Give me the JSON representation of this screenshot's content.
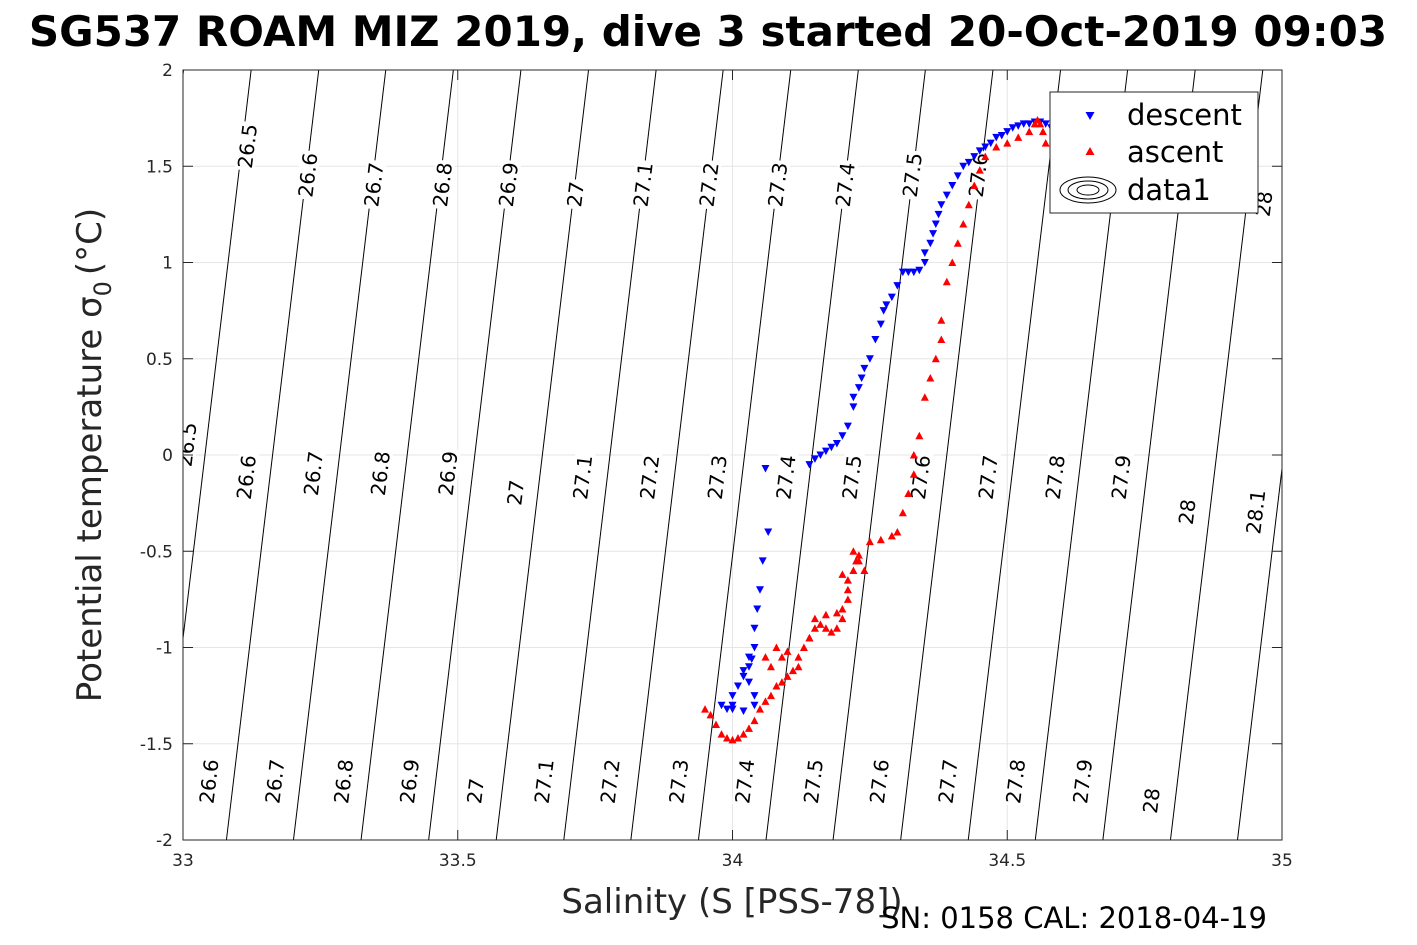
{
  "chart_data": {
    "type": "scatter",
    "title": "SG537 ROAM MIZ 2019, dive 3 started 20-Oct-2019 09:03",
    "xlabel": "Salinity (S [PSS-78])",
    "ylabel_main": "Potential temperature",
    "ylabel_sigma": "σ",
    "ylabel_sub": "0",
    "ylabel_unit": "(°C)",
    "xlim": [
      33,
      35
    ],
    "ylim": [
      -2,
      2
    ],
    "xticks": [
      33,
      33.5,
      34,
      34.5,
      35
    ],
    "xtick_labels": [
      "33",
      "33.5",
      "34",
      "34.5",
      "35"
    ],
    "yticks": [
      2,
      1.5,
      1,
      0.5,
      0,
      -0.5,
      -1,
      -1.5,
      -2
    ],
    "ytick_labels": [
      "2",
      "1.5",
      "1",
      "0.5",
      "0",
      "-0.5",
      "-1",
      "-1.5",
      "-2"
    ],
    "grid": true,
    "legend_position": "top-right",
    "legend": [
      "descent",
      "ascent",
      "data1"
    ],
    "colors": {
      "descent": "#0000ff",
      "ascent": "#ff0000",
      "contour": "#000000",
      "grid": "#e6e6e6"
    },
    "contours": {
      "intercepts_at_T_neg2": [
        32.833,
        32.956,
        33.079,
        33.201,
        33.324,
        33.447,
        33.57,
        33.693,
        33.815,
        33.938,
        34.061,
        34.183,
        34.306,
        34.429,
        34.551,
        34.674,
        34.797,
        34.919,
        35.042
      ],
      "slope_dS_per_degC": 0.042,
      "labels": [
        {
          "text": "26.5",
          "S": 33.13,
          "T": 1.6
        },
        {
          "text": "26.6",
          "S": 33.24,
          "T": 1.45
        },
        {
          "text": "26.7",
          "S": 33.36,
          "T": 1.4
        },
        {
          "text": "26.8",
          "S": 33.485,
          "T": 1.4
        },
        {
          "text": "26.9",
          "S": 33.605,
          "T": 1.4
        },
        {
          "text": "27",
          "S": 33.727,
          "T": 1.35
        },
        {
          "text": "27.1",
          "S": 33.85,
          "T": 1.4
        },
        {
          "text": "27.2",
          "S": 33.97,
          "T": 1.4
        },
        {
          "text": "27.3",
          "S": 34.095,
          "T": 1.4
        },
        {
          "text": "27.4",
          "S": 34.218,
          "T": 1.4
        },
        {
          "text": "27.5",
          "S": 34.34,
          "T": 1.45
        },
        {
          "text": "27.6",
          "S": 34.46,
          "T": 1.45
        },
        {
          "text": "28",
          "S": 34.98,
          "T": 1.3
        },
        {
          "text": "26.5",
          "S": 33.02,
          "T": 0.05
        },
        {
          "text": "26.6",
          "S": 33.128,
          "T": -0.12
        },
        {
          "text": "26.7",
          "S": 33.25,
          "T": -0.1
        },
        {
          "text": "26.8",
          "S": 33.372,
          "T": -0.1
        },
        {
          "text": "26.9",
          "S": 33.495,
          "T": -0.1
        },
        {
          "text": "27",
          "S": 33.618,
          "T": -0.2
        },
        {
          "text": "27.1",
          "S": 33.74,
          "T": -0.12
        },
        {
          "text": "27.2",
          "S": 33.862,
          "T": -0.12
        },
        {
          "text": "27.3",
          "S": 33.985,
          "T": -0.12
        },
        {
          "text": "27.4",
          "S": 34.11,
          "T": -0.12
        },
        {
          "text": "27.5",
          "S": 34.23,
          "T": -0.12
        },
        {
          "text": "27.6",
          "S": 34.355,
          "T": -0.12
        },
        {
          "text": "27.7",
          "S": 34.478,
          "T": -0.12
        },
        {
          "text": "27.8",
          "S": 34.6,
          "T": -0.12
        },
        {
          "text": "27.9",
          "S": 34.72,
          "T": -0.12
        },
        {
          "text": "28",
          "S": 34.84,
          "T": -0.3
        },
        {
          "text": "28.1",
          "S": 34.965,
          "T": -0.3
        },
        {
          "text": "26.6",
          "S": 33.06,
          "T": -1.7
        },
        {
          "text": "26.7",
          "S": 33.18,
          "T": -1.7
        },
        {
          "text": "26.8",
          "S": 33.305,
          "T": -1.7
        },
        {
          "text": "26.9",
          "S": 33.425,
          "T": -1.7
        },
        {
          "text": "27",
          "S": 33.545,
          "T": -1.75
        },
        {
          "text": "27.1",
          "S": 33.67,
          "T": -1.7
        },
        {
          "text": "27.2",
          "S": 33.79,
          "T": -1.7
        },
        {
          "text": "27.3",
          "S": 33.915,
          "T": -1.7
        },
        {
          "text": "27.4",
          "S": 34.035,
          "T": -1.7
        },
        {
          "text": "27.5",
          "S": 34.16,
          "T": -1.7
        },
        {
          "text": "27.6",
          "S": 34.28,
          "T": -1.7
        },
        {
          "text": "27.7",
          "S": 34.405,
          "T": -1.7
        },
        {
          "text": "27.8",
          "S": 34.528,
          "T": -1.7
        },
        {
          "text": "27.9",
          "S": 34.65,
          "T": -1.7
        },
        {
          "text": "28",
          "S": 34.775,
          "T": -1.8
        }
      ]
    },
    "series": [
      {
        "name": "descent",
        "marker": "triangle-down",
        "points": [
          [
            34.06,
            -0.07
          ],
          [
            34.065,
            -0.4
          ],
          [
            34.055,
            -0.55
          ],
          [
            34.05,
            -0.7
          ],
          [
            34.045,
            -0.8
          ],
          [
            34.04,
            -0.9
          ],
          [
            34.04,
            -1.0
          ],
          [
            34.035,
            -1.06
          ],
          [
            34.03,
            -1.1
          ],
          [
            34.03,
            -1.05
          ],
          [
            34.02,
            -1.15
          ],
          [
            34.01,
            -1.2
          ],
          [
            34.0,
            -1.25
          ],
          [
            34.0,
            -1.3
          ],
          [
            33.99,
            -1.32
          ],
          [
            33.98,
            -1.3
          ],
          [
            34.0,
            -1.32
          ],
          [
            34.02,
            -1.33
          ],
          [
            34.04,
            -1.3
          ],
          [
            34.04,
            -1.25
          ],
          [
            34.03,
            -1.18
          ],
          [
            34.02,
            -1.12
          ],
          [
            34.14,
            -0.05
          ],
          [
            34.15,
            -0.02
          ],
          [
            34.16,
            0.0
          ],
          [
            34.17,
            0.02
          ],
          [
            34.18,
            0.04
          ],
          [
            34.19,
            0.06
          ],
          [
            34.2,
            0.1
          ],
          [
            34.21,
            0.15
          ],
          [
            34.22,
            0.25
          ],
          [
            34.22,
            0.3
          ],
          [
            34.23,
            0.35
          ],
          [
            34.235,
            0.4
          ],
          [
            34.24,
            0.45
          ],
          [
            34.25,
            0.5
          ],
          [
            34.26,
            0.6
          ],
          [
            34.27,
            0.68
          ],
          [
            34.275,
            0.75
          ],
          [
            34.28,
            0.78
          ],
          [
            34.29,
            0.82
          ],
          [
            34.3,
            0.88
          ],
          [
            34.31,
            0.95
          ],
          [
            34.32,
            0.95
          ],
          [
            34.33,
            0.95
          ],
          [
            34.34,
            0.96
          ],
          [
            34.35,
            1.0
          ],
          [
            34.35,
            1.05
          ],
          [
            34.36,
            1.1
          ],
          [
            34.365,
            1.15
          ],
          [
            34.37,
            1.2
          ],
          [
            34.375,
            1.25
          ],
          [
            34.38,
            1.3
          ],
          [
            34.39,
            1.35
          ],
          [
            34.4,
            1.4
          ],
          [
            34.41,
            1.45
          ],
          [
            34.42,
            1.5
          ],
          [
            34.43,
            1.52
          ],
          [
            34.44,
            1.55
          ],
          [
            34.45,
            1.58
          ],
          [
            34.46,
            1.6
          ],
          [
            34.47,
            1.62
          ],
          [
            34.48,
            1.65
          ],
          [
            34.49,
            1.66
          ],
          [
            34.5,
            1.68
          ],
          [
            34.51,
            1.7
          ],
          [
            34.52,
            1.71
          ],
          [
            34.53,
            1.72
          ],
          [
            34.54,
            1.72
          ],
          [
            34.55,
            1.73
          ],
          [
            34.56,
            1.73
          ],
          [
            34.57,
            1.72
          ],
          [
            34.58,
            1.7
          ]
        ]
      },
      {
        "name": "ascent",
        "marker": "triangle-up",
        "points": [
          [
            33.95,
            -1.32
          ],
          [
            33.96,
            -1.35
          ],
          [
            33.97,
            -1.4
          ],
          [
            33.98,
            -1.45
          ],
          [
            33.99,
            -1.47
          ],
          [
            34.0,
            -1.48
          ],
          [
            34.01,
            -1.47
          ],
          [
            34.02,
            -1.45
          ],
          [
            34.03,
            -1.42
          ],
          [
            34.04,
            -1.38
          ],
          [
            34.05,
            -1.32
          ],
          [
            34.06,
            -1.28
          ],
          [
            34.07,
            -1.25
          ],
          [
            34.08,
            -1.2
          ],
          [
            34.09,
            -1.18
          ],
          [
            34.1,
            -1.15
          ],
          [
            34.11,
            -1.12
          ],
          [
            34.12,
            -1.05
          ],
          [
            34.13,
            -1.0
          ],
          [
            34.14,
            -0.95
          ],
          [
            34.15,
            -0.9
          ],
          [
            34.16,
            -0.88
          ],
          [
            34.17,
            -0.9
          ],
          [
            34.18,
            -0.92
          ],
          [
            34.19,
            -0.9
          ],
          [
            34.2,
            -0.85
          ],
          [
            34.21,
            -0.75
          ],
          [
            34.21,
            -0.65
          ],
          [
            34.22,
            -0.6
          ],
          [
            34.225,
            -0.55
          ],
          [
            34.23,
            -0.52
          ],
          [
            34.25,
            -0.45
          ],
          [
            34.27,
            -0.44
          ],
          [
            34.29,
            -0.42
          ],
          [
            34.3,
            -0.4
          ],
          [
            34.31,
            -0.3
          ],
          [
            34.32,
            -0.2
          ],
          [
            34.33,
            -0.1
          ],
          [
            34.33,
            0.0
          ],
          [
            34.34,
            0.1
          ],
          [
            34.35,
            0.3
          ],
          [
            34.36,
            0.4
          ],
          [
            34.37,
            0.5
          ],
          [
            34.38,
            0.6
          ],
          [
            34.38,
            0.7
          ],
          [
            34.39,
            0.9
          ],
          [
            34.4,
            1.0
          ],
          [
            34.41,
            1.1
          ],
          [
            34.42,
            1.2
          ],
          [
            34.43,
            1.3
          ],
          [
            34.44,
            1.4
          ],
          [
            34.45,
            1.48
          ],
          [
            34.46,
            1.55
          ],
          [
            34.48,
            1.6
          ],
          [
            34.5,
            1.62
          ],
          [
            34.52,
            1.65
          ],
          [
            34.54,
            1.68
          ],
          [
            34.55,
            1.72
          ],
          [
            34.555,
            1.74
          ],
          [
            34.56,
            1.72
          ],
          [
            34.565,
            1.68
          ],
          [
            34.57,
            1.62
          ],
          [
            34.06,
            -1.05
          ],
          [
            34.07,
            -1.1
          ],
          [
            34.08,
            -1.0
          ],
          [
            34.09,
            -1.05
          ],
          [
            34.1,
            -1.02
          ],
          [
            34.12,
            -1.1
          ],
          [
            34.14,
            -0.95
          ],
          [
            34.15,
            -0.85
          ],
          [
            34.17,
            -0.83
          ],
          [
            34.19,
            -0.82
          ],
          [
            34.2,
            -0.8
          ],
          [
            34.21,
            -0.7
          ],
          [
            34.22,
            -0.5
          ],
          [
            34.23,
            -0.55
          ],
          [
            34.24,
            -0.6
          ],
          [
            34.2,
            -0.62
          ]
        ]
      },
      {
        "name": "data1",
        "marker": "contour"
      }
    ]
  },
  "footer": "SN: 0158  CAL: 2018-04-19"
}
